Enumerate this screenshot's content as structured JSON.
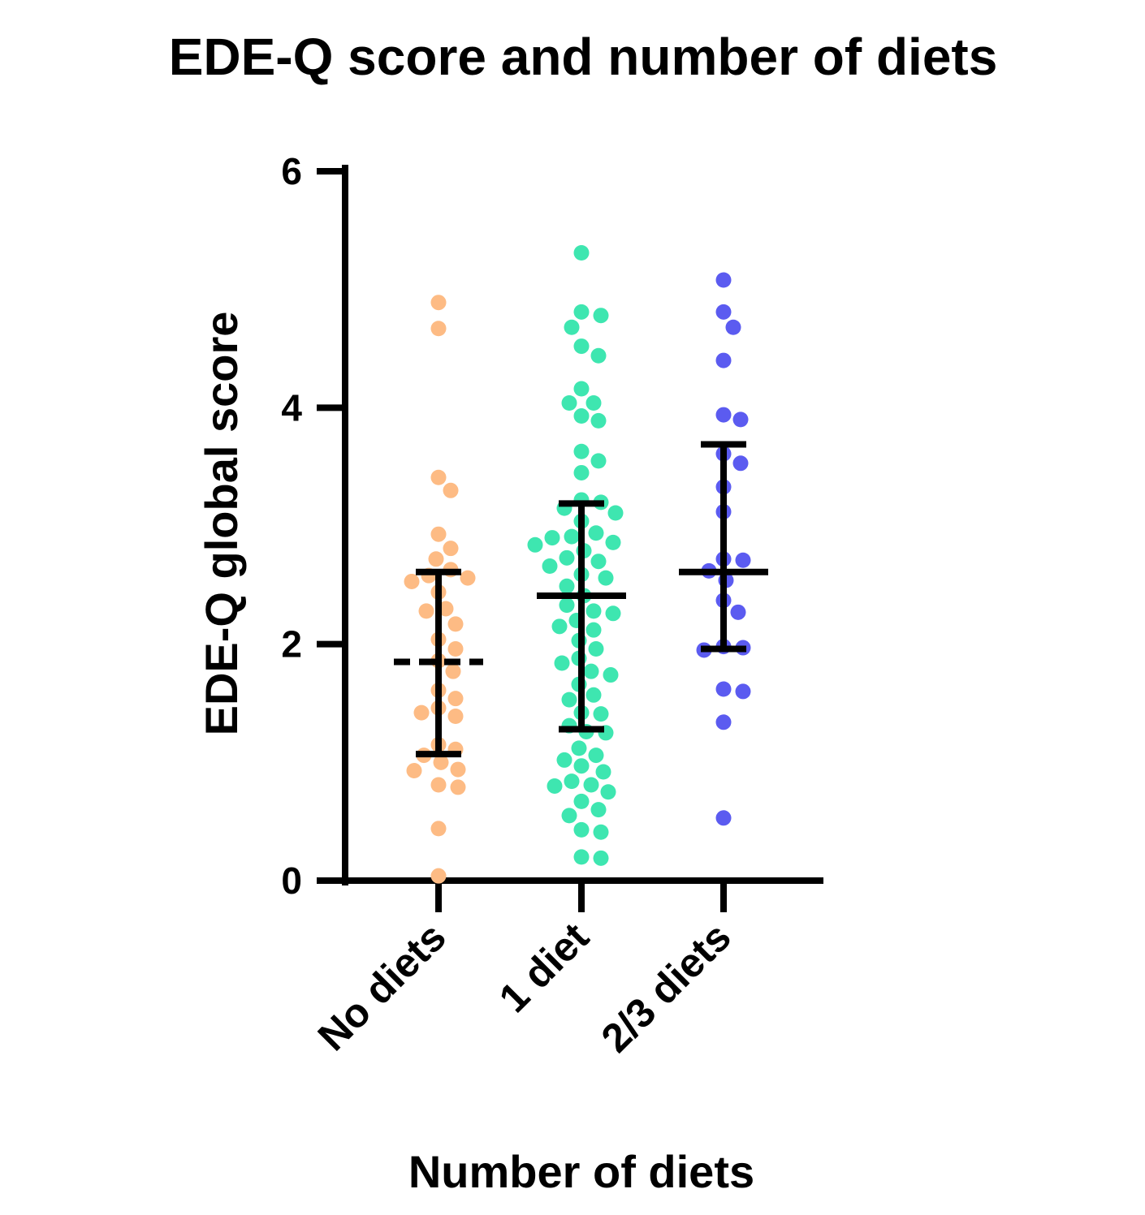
{
  "chart_data": {
    "type": "scatter",
    "title": "EDE-Q score and number of diets",
    "xlabel": "Number of diets",
    "ylabel": "EDE-Q global score",
    "ylim": [
      0,
      6
    ],
    "yticks": [
      "0",
      "2",
      "4",
      "6"
    ],
    "categories": [
      "No diets",
      "1 diet",
      "2/3 diets"
    ],
    "series": [
      {
        "name": "No diets",
        "color": "#FDBB84",
        "center_style": "dashed",
        "mean": 1.85,
        "sd_low": 1.07,
        "sd_high": 2.61,
        "values": [
          4.89,
          4.67,
          3.41,
          3.3,
          2.93,
          2.81,
          2.72,
          2.63,
          2.58,
          2.56,
          2.53,
          2.44,
          2.3,
          2.28,
          2.17,
          2.04,
          1.96,
          1.86,
          1.77,
          1.61,
          1.54,
          1.46,
          1.42,
          1.39,
          1.15,
          1.11,
          1.06,
          1.0,
          0.94,
          0.93,
          0.79,
          0.81,
          0.44,
          0.04
        ]
      },
      {
        "name": "1 diet",
        "color": "#3EE6B0",
        "center_style": "solid",
        "mean": 2.41,
        "sd_low": 1.28,
        "sd_high": 3.19,
        "values": [
          5.31,
          4.81,
          4.78,
          4.68,
          4.52,
          4.44,
          4.16,
          4.04,
          4.04,
          3.93,
          3.89,
          3.63,
          3.55,
          3.45,
          3.22,
          3.2,
          3.15,
          3.11,
          3.04,
          2.94,
          2.91,
          2.9,
          2.86,
          2.84,
          2.79,
          2.73,
          2.7,
          2.66,
          2.59,
          2.56,
          2.49,
          2.41,
          2.33,
          2.28,
          2.26,
          2.2,
          2.15,
          2.12,
          2.03,
          1.96,
          1.88,
          1.84,
          1.77,
          1.74,
          1.66,
          1.57,
          1.53,
          1.42,
          1.41,
          1.31,
          1.26,
          1.25,
          1.12,
          1.06,
          1.02,
          0.97,
          0.92,
          0.84,
          0.81,
          0.8,
          0.75,
          0.67,
          0.6,
          0.55,
          0.43,
          0.41,
          0.2,
          0.19
        ]
      },
      {
        "name": "2/3 diets",
        "color": "#5B5BF0",
        "center_style": "solid",
        "mean": 2.61,
        "sd_low": 1.96,
        "sd_high": 3.69,
        "values": [
          5.08,
          4.81,
          4.68,
          4.4,
          3.94,
          3.9,
          3.61,
          3.53,
          3.33,
          3.12,
          2.72,
          2.71,
          2.62,
          2.54,
          2.37,
          2.27,
          1.98,
          1.97,
          1.95,
          1.62,
          1.6,
          1.34,
          0.53
        ]
      }
    ]
  }
}
